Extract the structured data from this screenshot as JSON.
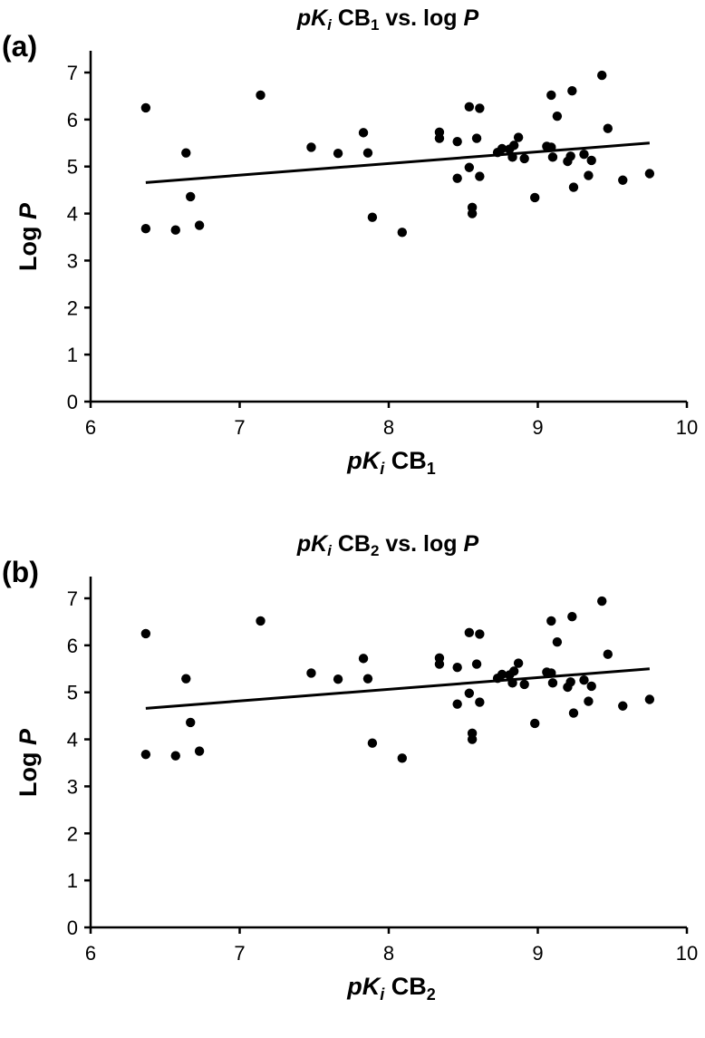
{
  "chart_data": [
    {
      "panel_label": "(a)",
      "type": "scatter",
      "title": {
        "prefix": "pK",
        "sub_i": "i",
        "mid": " CB",
        "sub_n": "1",
        "suffix": " vs. log ",
        "italic_end": "P"
      },
      "xlabel": {
        "prefix": "pK",
        "sub_i": "i",
        "mid": " CB",
        "sub_n": "1"
      },
      "ylabel": {
        "text": "Log",
        "italic_end": "P"
      },
      "xlim": [
        6,
        10
      ],
      "ylim": [
        0,
        7
      ],
      "x_ticks": [
        "6",
        "7",
        "8",
        "9",
        "10"
      ],
      "y_ticks": [
        "0",
        "1",
        "2",
        "3",
        "4",
        "5",
        "6",
        "7"
      ],
      "trendline": {
        "x": [
          6.37,
          9.75
        ],
        "y": [
          4.66,
          5.5
        ]
      },
      "points": [
        [
          6.37,
          6.25
        ],
        [
          6.37,
          3.68
        ],
        [
          6.57,
          3.65
        ],
        [
          6.64,
          5.29
        ],
        [
          6.67,
          4.36
        ],
        [
          6.73,
          3.75
        ],
        [
          7.14,
          6.52
        ],
        [
          7.48,
          5.41
        ],
        [
          7.66,
          5.28
        ],
        [
          7.83,
          5.72
        ],
        [
          7.86,
          5.29
        ],
        [
          7.89,
          3.92
        ],
        [
          8.09,
          3.6
        ],
        [
          8.34,
          5.73
        ],
        [
          8.34,
          5.6
        ],
        [
          8.46,
          5.53
        ],
        [
          8.46,
          4.75
        ],
        [
          8.54,
          6.27
        ],
        [
          8.54,
          4.98
        ],
        [
          8.56,
          4.13
        ],
        [
          8.56,
          4.0
        ],
        [
          8.59,
          5.6
        ],
        [
          8.61,
          6.24
        ],
        [
          8.61,
          4.79
        ],
        [
          8.73,
          5.3
        ],
        [
          8.76,
          5.38
        ],
        [
          8.81,
          5.37
        ],
        [
          8.83,
          5.2
        ],
        [
          8.84,
          5.45
        ],
        [
          8.87,
          5.62
        ],
        [
          8.91,
          5.17
        ],
        [
          8.98,
          4.34
        ],
        [
          9.06,
          5.43
        ],
        [
          9.09,
          6.52
        ],
        [
          9.09,
          5.41
        ],
        [
          9.1,
          5.2
        ],
        [
          9.13,
          6.07
        ],
        [
          9.2,
          5.11
        ],
        [
          9.22,
          5.22
        ],
        [
          9.23,
          6.61
        ],
        [
          9.24,
          4.56
        ],
        [
          9.31,
          5.26
        ],
        [
          9.34,
          4.81
        ],
        [
          9.36,
          5.13
        ],
        [
          9.43,
          6.94
        ],
        [
          9.47,
          5.81
        ],
        [
          9.57,
          4.71
        ],
        [
          9.75,
          4.85
        ]
      ]
    },
    {
      "panel_label": "(b)",
      "type": "scatter",
      "title": {
        "prefix": "pK",
        "sub_i": "i",
        "mid": " CB",
        "sub_n": "2",
        "suffix": " vs. log ",
        "italic_end": "P"
      },
      "xlabel": {
        "prefix": "pK",
        "sub_i": "i",
        "mid": " CB",
        "sub_n": "2"
      },
      "ylabel": {
        "text": "Log",
        "italic_end": "P"
      },
      "xlim": [
        6,
        10
      ],
      "ylim": [
        0,
        7
      ],
      "x_ticks": [
        "6",
        "7",
        "8",
        "9",
        "10"
      ],
      "y_ticks": [
        "0",
        "1",
        "2",
        "3",
        "4",
        "5",
        "6",
        "7"
      ],
      "trendline": {
        "x": [
          6.37,
          9.75
        ],
        "y": [
          4.66,
          5.5
        ]
      },
      "points": [
        [
          6.37,
          6.25
        ],
        [
          6.37,
          3.68
        ],
        [
          6.57,
          3.65
        ],
        [
          6.64,
          5.29
        ],
        [
          6.67,
          4.36
        ],
        [
          6.73,
          3.75
        ],
        [
          7.14,
          6.52
        ],
        [
          7.48,
          5.41
        ],
        [
          7.66,
          5.28
        ],
        [
          7.83,
          5.72
        ],
        [
          7.86,
          5.29
        ],
        [
          7.89,
          3.92
        ],
        [
          8.09,
          3.6
        ],
        [
          8.34,
          5.73
        ],
        [
          8.34,
          5.6
        ],
        [
          8.46,
          5.53
        ],
        [
          8.46,
          4.75
        ],
        [
          8.54,
          6.27
        ],
        [
          8.54,
          4.98
        ],
        [
          8.56,
          4.13
        ],
        [
          8.56,
          4.0
        ],
        [
          8.59,
          5.6
        ],
        [
          8.61,
          6.24
        ],
        [
          8.61,
          4.79
        ],
        [
          8.73,
          5.3
        ],
        [
          8.76,
          5.38
        ],
        [
          8.81,
          5.37
        ],
        [
          8.83,
          5.2
        ],
        [
          8.84,
          5.45
        ],
        [
          8.87,
          5.62
        ],
        [
          8.91,
          5.17
        ],
        [
          8.98,
          4.34
        ],
        [
          9.06,
          5.43
        ],
        [
          9.09,
          6.52
        ],
        [
          9.09,
          5.41
        ],
        [
          9.1,
          5.2
        ],
        [
          9.13,
          6.07
        ],
        [
          9.2,
          5.11
        ],
        [
          9.22,
          5.22
        ],
        [
          9.23,
          6.61
        ],
        [
          9.24,
          4.56
        ],
        [
          9.31,
          5.26
        ],
        [
          9.34,
          4.81
        ],
        [
          9.36,
          5.13
        ],
        [
          9.43,
          6.94
        ],
        [
          9.47,
          5.81
        ],
        [
          9.57,
          4.71
        ],
        [
          9.75,
          4.85
        ]
      ]
    }
  ]
}
